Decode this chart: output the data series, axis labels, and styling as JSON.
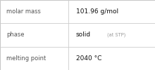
{
  "rows": [
    {
      "label": "molar mass",
      "value": "101.96 g/mol",
      "value2": null
    },
    {
      "label": "phase",
      "value": "solid",
      "value2": "(at STP)"
    },
    {
      "label": "melting point",
      "value": "2040 °C",
      "value2": null
    }
  ],
  "background_color": "#ffffff",
  "border_color": "#bbbbbb",
  "divider_color": "#cccccc",
  "label_color": "#555555",
  "value_color": "#111111",
  "value2_color": "#999999",
  "label_fontsize": 6.0,
  "value_fontsize": 6.5,
  "value2_fontsize": 4.8,
  "col_split": 0.44,
  "figsize": [
    2.2,
    1.0
  ],
  "dpi": 100
}
